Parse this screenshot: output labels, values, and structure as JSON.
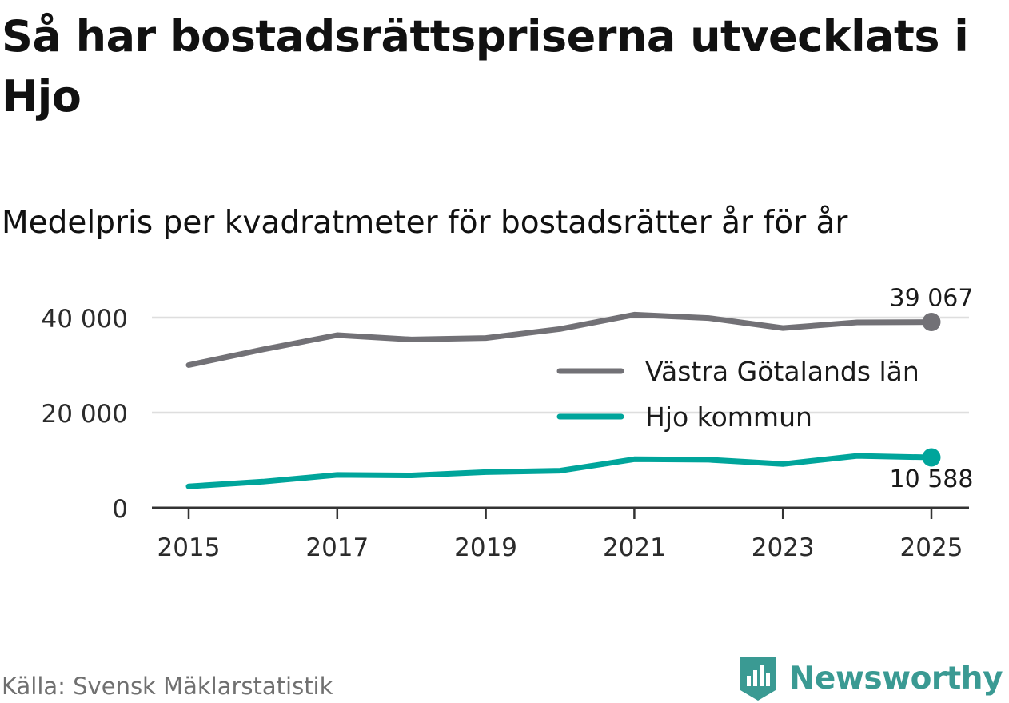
{
  "title": "Så har bostadsrättspriserna utvecklats i Hjo",
  "subtitle": "Medelpris per kvadratmeter för bostadsrätter år för år",
  "source": "Källa: Svensk Mäklarstatistik",
  "brand": {
    "name": "Newsworthy",
    "icon": "newsworthy-logo-icon",
    "color": "#3a9a93"
  },
  "chart_data": {
    "type": "line",
    "x": [
      2015,
      2016,
      2017,
      2018,
      2019,
      2020,
      2021,
      2022,
      2023,
      2024,
      2025
    ],
    "x_tick_values": [
      2015,
      2017,
      2019,
      2021,
      2023,
      2025
    ],
    "x_tick_labels": [
      "2015",
      "2017",
      "2019",
      "2021",
      "2023",
      "2025"
    ],
    "y_tick_values": [
      0,
      20000,
      40000
    ],
    "y_tick_labels": [
      "0",
      "20 000",
      "40 000"
    ],
    "ylim": [
      0,
      40000
    ],
    "grid": true,
    "legend_placement": "center-right",
    "series": [
      {
        "name": "Västra Götalands län",
        "color": "#727176",
        "values": [
          30000,
          33300,
          36300,
          35400,
          35700,
          37600,
          40600,
          39900,
          37800,
          39000,
          39067
        ],
        "end_label": "39 067"
      },
      {
        "name": "Hjo kommun",
        "color": "#00a59b",
        "values": [
          4500,
          5500,
          6900,
          6800,
          7500,
          7800,
          10200,
          10100,
          9200,
          10900,
          10588
        ],
        "end_label": "10 588"
      }
    ]
  }
}
